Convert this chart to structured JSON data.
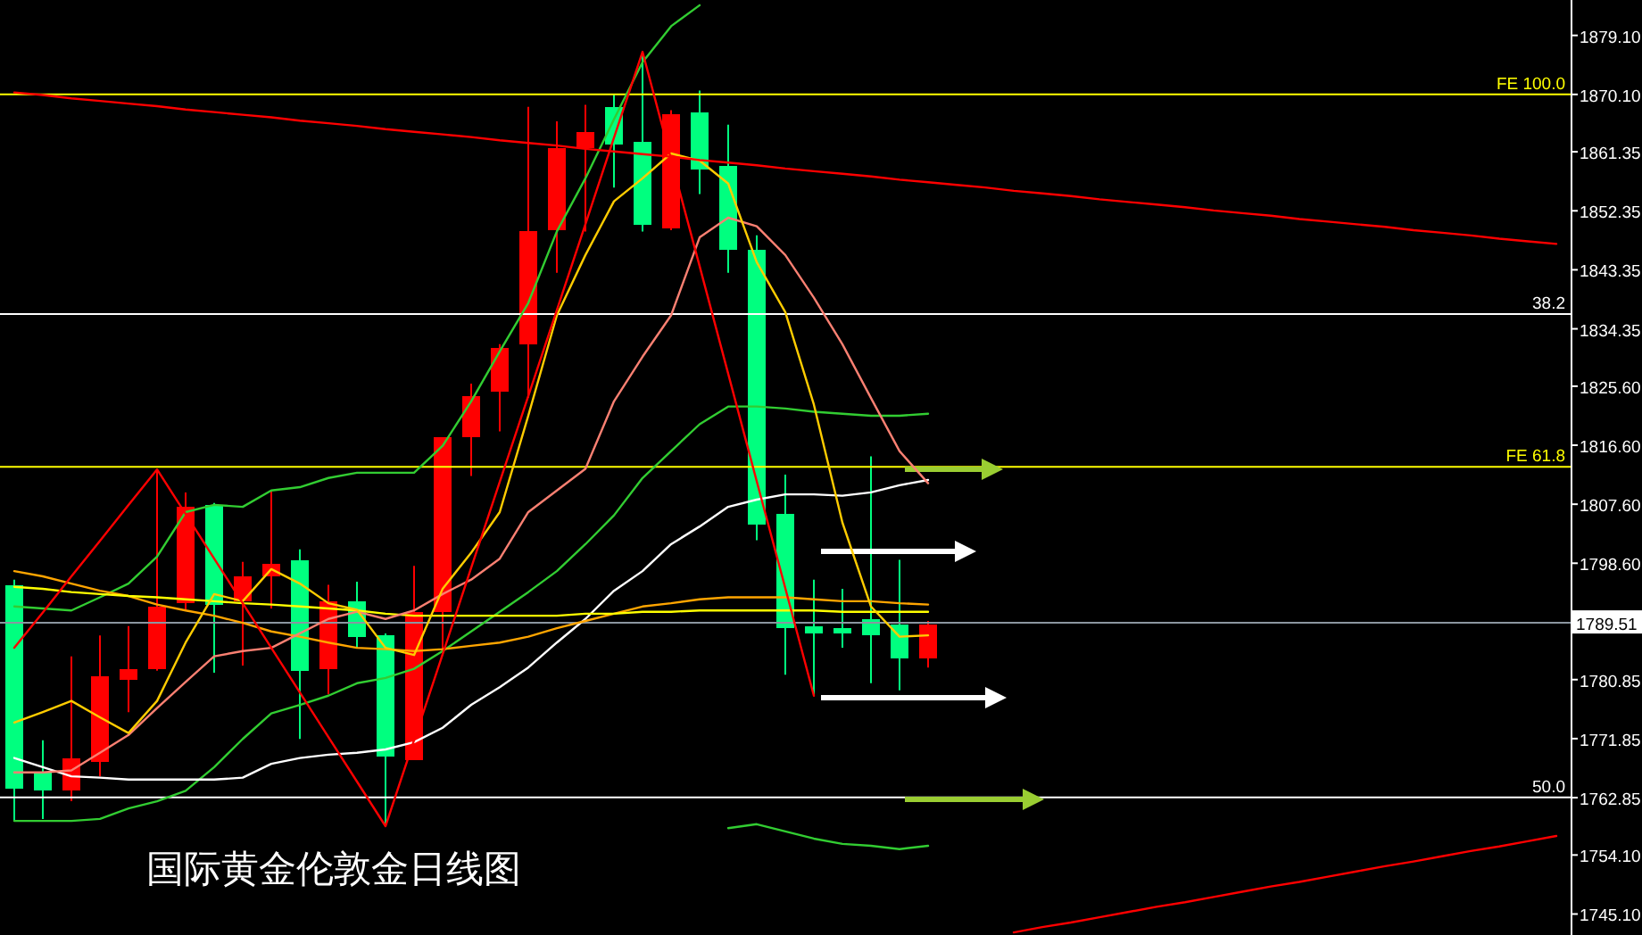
{
  "chart_data": [
    {
      "type": "candlestick",
      "title": "国际黄金伦敦金日线图",
      "categories": [
        null,
        null,
        null,
        null,
        null,
        null,
        null,
        null,
        null,
        null,
        null,
        null,
        null,
        null,
        null,
        null,
        null,
        null,
        null,
        null,
        null,
        null,
        null,
        null,
        null,
        null,
        null,
        null,
        null,
        null,
        null,
        null,
        null
      ],
      "ohlc": [
        [
          1795.3,
          1796.1,
          1759.3,
          1764.2
        ],
        [
          1766.7,
          1771.6,
          1759.6,
          1764.0
        ],
        [
          1764.0,
          1784.4,
          1762.3,
          1768.9
        ],
        [
          1768.3,
          1787.6,
          1766.1,
          1781.4
        ],
        [
          1780.8,
          1789.0,
          1775.9,
          1782.5
        ],
        [
          1782.5,
          1812.9,
          1782.2,
          1792.0
        ],
        [
          1792.5,
          1809.4,
          1791.4,
          1807.2
        ],
        [
          1807.5,
          1807.8,
          1781.9,
          1792.3
        ],
        [
          1792.8,
          1798.8,
          1783.0,
          1796.6
        ],
        [
          1796.6,
          1809.7,
          1791.7,
          1798.5
        ],
        [
          1799.1,
          1800.7,
          1771.8,
          1782.2
        ],
        [
          1782.5,
          1795.3,
          1778.6,
          1792.8
        ],
        [
          1792.8,
          1795.8,
          1785.7,
          1787.4
        ],
        [
          1787.6,
          1787.9,
          1758.5,
          1769.1
        ],
        [
          1768.6,
          1798.2,
          1768.6,
          1791.2
        ],
        [
          1791.2,
          1817.8,
          1785.2,
          1817.8
        ],
        [
          1817.8,
          1826.0,
          1811.9,
          1824.1
        ],
        [
          1824.7,
          1832.0,
          1818.7,
          1831.5
        ],
        [
          1832.0,
          1868.2,
          1823.8,
          1849.2
        ],
        [
          1849.4,
          1866.0,
          1842.9,
          1861.9
        ],
        [
          1861.9,
          1868.5,
          1849.2,
          1864.4
        ],
        [
          1868.2,
          1870.1,
          1855.9,
          1862.5
        ],
        [
          1862.8,
          1876.6,
          1849.2,
          1850.2
        ],
        [
          1849.7,
          1867.7,
          1849.4,
          1867.1
        ],
        [
          1867.4,
          1870.7,
          1854.9,
          1858.7
        ],
        [
          1859.2,
          1865.5,
          1842.9,
          1846.4
        ],
        [
          1846.4,
          1848.6,
          1802.1,
          1804.5
        ],
        [
          1806.1,
          1812.1,
          1781.6,
          1788.7
        ],
        [
          1789.0,
          1796.1,
          1778.4,
          1787.9
        ],
        [
          1788.7,
          1794.7,
          1785.7,
          1787.9
        ],
        [
          1790.1,
          1814.9,
          1780.3,
          1787.6
        ],
        [
          1789.3,
          1799.1,
          1779.2,
          1784.1
        ],
        [
          1784.1,
          1789.8,
          1782.7,
          1789.3
        ]
      ],
      "colors": [
        "#00ff7f",
        "#00ff7f",
        "#ff0000",
        "#ff0000",
        "#ff0000",
        "#ff0000",
        "#ff0000",
        "#00ff7f",
        "#ff0000",
        "#ff0000",
        "#00ff7f",
        "#ff0000",
        "#00ff7f",
        "#00ff7f",
        "#ff0000",
        "#ff0000",
        "#ff0000",
        "#ff0000",
        "#ff0000",
        "#ff0000",
        "#ff0000",
        "#00ff7f",
        "#00ff7f",
        "#ff0000",
        "#00ff7f",
        "#00ff7f",
        "#00ff7f",
        "#00ff7f",
        "#00ff7f",
        "#00ff7f",
        "#00ff7f",
        "#00ff7f",
        "#ff0000"
      ],
      "ylim": [
        1741.9,
        1884.5
      ],
      "tick_labels": false
    },
    {
      "type": "line",
      "categories": [
        null,
        null,
        null,
        null,
        null,
        null,
        null,
        null,
        null,
        null,
        null,
        null,
        null,
        null,
        null,
        null,
        null,
        null,
        null,
        null,
        null,
        null,
        null,
        null,
        null,
        null,
        null,
        null,
        null,
        null,
        null,
        null,
        null,
        null,
        null,
        null,
        null,
        null,
        null,
        null,
        null,
        null,
        null,
        null,
        null,
        null,
        null,
        null,
        null,
        null,
        null,
        null,
        null,
        null,
        null
      ],
      "series": [
        {
          "color": "#32cd32",
          "values": [
            1792.0,
            1791.7,
            1791.4,
            1793.4,
            1795.5,
            1799.6,
            1806.4,
            1807.5,
            1807.2,
            1809.7,
            1810.2,
            1811.6,
            1812.4,
            1812.4,
            1812.4,
            1816.5,
            1823.3,
            1830.9,
            1838.3,
            1849.2,
            1857.3,
            1866.3,
            1875.0,
            1880.5,
            1883.7,
            null,
            null,
            null,
            null,
            null,
            null,
            null,
            null,
            null,
            null,
            null,
            null,
            null,
            null,
            null,
            null,
            null,
            null,
            null,
            null,
            null,
            null,
            null,
            null,
            null,
            null,
            null,
            null,
            null,
            null
          ]
        },
        {
          "color": "#32cd32",
          "values": [
            1759.3,
            1759.3,
            1759.3,
            1759.6,
            1761.2,
            1762.3,
            1763.9,
            1767.5,
            1771.8,
            1775.7,
            1777.0,
            1778.4,
            1780.3,
            1781.1,
            1782.5,
            1785.2,
            1788.2,
            1791.2,
            1794.2,
            1797.4,
            1801.5,
            1805.9,
            1811.6,
            1815.7,
            1819.8,
            1822.5,
            1822.5,
            1822.2,
            1821.7,
            1821.4,
            1821.1,
            1821.1,
            1821.4,
            null,
            null,
            null,
            null,
            null,
            null,
            null,
            null,
            null,
            null,
            null,
            null,
            null,
            null,
            null,
            null,
            null,
            null,
            null,
            null,
            null,
            null
          ]
        },
        {
          "color": "#32cd32",
          "values": [
            null,
            null,
            null,
            null,
            null,
            null,
            null,
            null,
            null,
            null,
            null,
            null,
            null,
            null,
            null,
            null,
            null,
            null,
            null,
            null,
            null,
            null,
            null,
            null,
            null,
            1758.2,
            1758.8,
            1757.7,
            1756.6,
            1755.8,
            1755.5,
            1755.0,
            1755.5,
            null,
            null,
            null,
            null,
            null,
            null,
            null,
            null,
            null,
            null,
            null,
            null,
            null,
            null,
            null,
            null,
            null,
            null,
            null,
            null,
            null,
            null
          ]
        },
        {
          "color": "#ffffff",
          "values": [
            1768.9,
            1767.5,
            1766.1,
            1765.9,
            1765.6,
            1765.6,
            1765.6,
            1765.6,
            1765.9,
            1768.0,
            1768.9,
            1769.4,
            1769.7,
            1770.2,
            1771.3,
            1773.5,
            1777.0,
            1779.7,
            1782.7,
            1786.5,
            1790.1,
            1794.4,
            1797.4,
            1801.5,
            1804.2,
            1807.2,
            1808.3,
            1809.1,
            1809.1,
            1808.9,
            1809.4,
            1810.5,
            1811.3,
            null,
            null,
            null,
            null,
            null,
            null,
            null,
            null,
            null,
            null,
            null,
            null,
            null,
            null,
            null,
            null,
            null,
            null,
            null,
            null,
            null,
            null
          ]
        },
        {
          "color": "#ffa500",
          "values": [
            1797.4,
            1796.6,
            1795.5,
            1794.4,
            1793.6,
            1792.3,
            1791.4,
            1790.6,
            1789.5,
            1788.2,
            1787.4,
            1786.5,
            1785.7,
            1785.5,
            1785.2,
            1785.5,
            1786.0,
            1786.5,
            1787.4,
            1788.7,
            1789.8,
            1790.9,
            1792.0,
            1792.5,
            1793.1,
            1793.4,
            1793.4,
            1793.4,
            1793.1,
            1792.8,
            1792.8,
            1792.5,
            1792.3,
            null,
            null,
            null,
            null,
            null,
            null,
            null,
            null,
            null,
            null,
            null,
            null,
            null,
            null,
            null,
            null,
            null,
            null,
            null,
            null,
            null,
            null
          ]
        },
        {
          "color": "#ffff00",
          "values": [
            1795.0,
            1794.7,
            1794.2,
            1793.9,
            1793.6,
            1793.4,
            1793.1,
            1792.8,
            1792.5,
            1792.3,
            1792.0,
            1791.7,
            1791.4,
            1790.9,
            1790.6,
            1790.6,
            1790.6,
            1790.6,
            1790.6,
            1790.6,
            1790.9,
            1790.9,
            1791.2,
            1791.2,
            1791.4,
            1791.4,
            1791.4,
            1791.4,
            1791.4,
            1791.2,
            1791.2,
            1791.2,
            1791.2,
            null,
            null,
            null,
            null,
            null,
            null,
            null,
            null,
            null,
            null,
            null,
            null,
            null,
            null,
            null,
            null,
            null,
            null,
            null,
            null,
            null,
            null
          ]
        },
        {
          "color": "#fa8072",
          "values": [
            1766.7,
            1766.7,
            1767.0,
            1769.7,
            1772.4,
            1776.5,
            1780.5,
            1784.4,
            1785.2,
            1785.7,
            1787.9,
            1790.1,
            1791.2,
            1790.1,
            1791.4,
            1793.9,
            1796.1,
            1799.3,
            1806.4,
            1809.7,
            1813.0,
            1823.3,
            1830.1,
            1836.4,
            1848.3,
            1851.3,
            1850.0,
            1845.6,
            1839.1,
            1832.0,
            1823.8,
            1815.7,
            1810.8,
            null,
            null,
            null,
            null,
            null,
            null,
            null,
            null,
            null,
            null,
            null,
            null,
            null,
            null,
            null,
            null,
            null,
            null,
            null,
            null,
            null,
            null
          ]
        },
        {
          "color": "#ffcc00",
          "values": [
            1774.3,
            1775.9,
            1777.6,
            1775.1,
            1772.7,
            1777.6,
            1786.5,
            1793.9,
            1792.8,
            1797.7,
            1795.5,
            1792.5,
            1791.5,
            1785.7,
            1784.6,
            1794.7,
            1800.2,
            1806.4,
            1821.1,
            1836.4,
            1845.6,
            1853.8,
            1857.3,
            1861.1,
            1860.0,
            1856.5,
            1844.5,
            1836.9,
            1822.8,
            1804.8,
            1792.0,
            1787.4,
            1787.6,
            null,
            null,
            null,
            null,
            null,
            null,
            null,
            null,
            null,
            null,
            null,
            null,
            null,
            null,
            null,
            null,
            null,
            null,
            null,
            null,
            null,
            null
          ]
        },
        {
          "color": "#ff0000",
          "values": [
            1785.7,
            1791.1,
            1796.6,
            1802.0,
            1807.5,
            1812.9,
            1806.1,
            1799.3,
            1792.5,
            1785.7,
            1778.9,
            1772.1,
            1765.3,
            1758.5,
            1771.6,
            1784.7,
            1797.9,
            1811.0,
            1824.1,
            1837.2,
            1850.3,
            1863.5,
            1876.6,
            1860.2,
            1843.9,
            1827.5,
            1811.1,
            1794.8,
            1778.4,
            null,
            null,
            null,
            null,
            null,
            null,
            null,
            null,
            null,
            null,
            null,
            null,
            null,
            null,
            null,
            null,
            null,
            null,
            null,
            null,
            null,
            null,
            null,
            null,
            null,
            null
          ]
        },
        {
          "color": "#ff0000",
          "values": [
            1870.4,
            1870.0,
            1869.5,
            1869.1,
            1868.7,
            1868.3,
            1867.8,
            1867.4,
            1867.0,
            1866.6,
            1866.1,
            1865.7,
            1865.3,
            1864.8,
            1864.4,
            1864.0,
            1863.6,
            1863.1,
            1862.7,
            1862.3,
            1861.8,
            1861.4,
            1861.0,
            1860.6,
            1860.1,
            1859.7,
            1859.3,
            1858.8,
            1858.4,
            1858.0,
            1857.6,
            1857.1,
            1856.7,
            1856.3,
            1855.9,
            1855.4,
            1855.0,
            1854.6,
            1854.1,
            1853.7,
            1853.3,
            1852.9,
            1852.4,
            1852.0,
            1851.6,
            1851.1,
            1850.7,
            1850.3,
            1849.9,
            1849.4,
            1849.0,
            1848.6,
            1848.1,
            1847.7,
            1847.3
          ]
        },
        {
          "color": "#ff0000",
          "values": [
            null,
            null,
            null,
            null,
            null,
            null,
            null,
            null,
            null,
            null,
            null,
            null,
            null,
            null,
            null,
            null,
            null,
            null,
            null,
            null,
            null,
            null,
            null,
            null,
            null,
            null,
            null,
            null,
            null,
            null,
            null,
            null,
            null,
            null,
            null,
            1742.3,
            1743.1,
            1743.8,
            1744.6,
            1745.4,
            1746.2,
            1746.9,
            1747.7,
            1748.5,
            1749.3,
            1750.0,
            1750.8,
            1751.6,
            1752.4,
            1753.1,
            1753.9,
            1754.7,
            1755.4,
            1756.2,
            1757.0
          ]
        }
      ],
      "ylim": [
        1741.9,
        1884.5
      ],
      "yticks": [
        {
          "value": 1879.1,
          "label": "1879.10"
        },
        {
          "value": 1870.1,
          "label": "1870.10"
        },
        {
          "value": 1861.35,
          "label": "1861.35"
        },
        {
          "value": 1852.35,
          "label": "1852.35"
        },
        {
          "value": 1843.35,
          "label": "1843.35"
        },
        {
          "value": 1834.35,
          "label": "1834.35"
        },
        {
          "value": 1825.6,
          "label": "1825.60"
        },
        {
          "value": 1816.6,
          "label": "1816.60"
        },
        {
          "value": 1807.6,
          "label": "1807.60"
        },
        {
          "value": 1798.6,
          "label": "1798.60"
        },
        {
          "value": 1780.85,
          "label": "1780.85"
        },
        {
          "value": 1771.85,
          "label": "1771.85"
        },
        {
          "value": 1762.85,
          "label": "1762.85"
        },
        {
          "value": 1754.1,
          "label": "1754.10"
        },
        {
          "value": 1745.1,
          "label": "1745.10"
        }
      ],
      "tick_labels": "y",
      "ref_lines": [
        {
          "axis": "y",
          "value": 1870.1,
          "label": "FE 100.0",
          "color": "#ffff00"
        },
        {
          "axis": "y",
          "value": 1836.6,
          "color": "#ffffff"
        },
        {
          "axis": "y",
          "value": 1813.3,
          "label": "FE 61.8",
          "color": "#ffff00"
        },
        {
          "axis": "y",
          "value": 1789.51,
          "label": "1789.51",
          "color": "#8c96a0"
        },
        {
          "axis": "y",
          "value": 1762.9,
          "color": "#ffffff"
        }
      ],
      "annotations": [
        {
          "text": "38.2",
          "y": 1836.6
        },
        {
          "text": "50.0",
          "y": 1762.9
        }
      ]
    }
  ]
}
